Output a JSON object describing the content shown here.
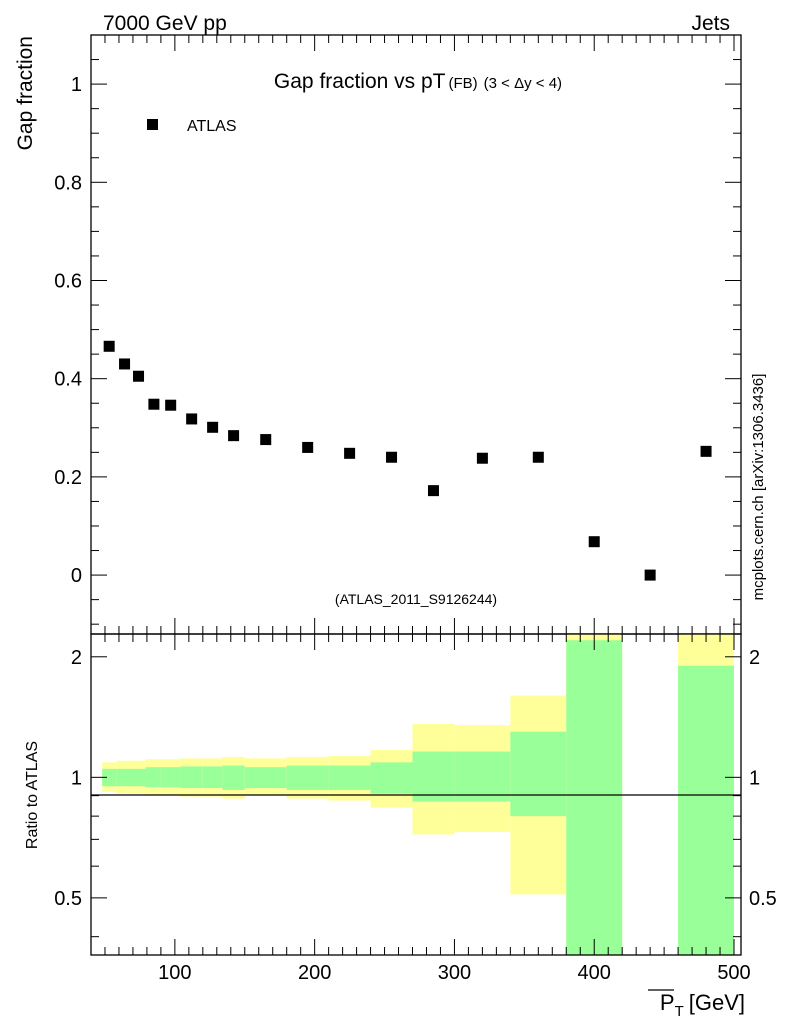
{
  "header": {
    "left": "7000 GeV pp",
    "right": "Jets"
  },
  "watermark": "mcplots.cern.ch [arXiv:1306.3436]",
  "colors": {
    "band_inner": "#99ff99",
    "band_outer": "#ffff99",
    "marker": "#000000",
    "reference_text": "#999999"
  },
  "chart_data": [
    {
      "type": "scatter",
      "title": "Gap fraction vs pT",
      "title_suffix": "(FB)",
      "title_range": "(3 < Δy < 4)",
      "ylabel": "Gap fraction",
      "xlim": [
        40,
        505
      ],
      "ylim": [
        -0.12,
        1.1
      ],
      "yticks": [
        0,
        0.2,
        0.4,
        0.6,
        0.8,
        1
      ],
      "ytick_labels": [
        "0",
        "0.2",
        "0.4",
        "0.6",
        "0.8",
        "1"
      ],
      "grid": false,
      "legend": {
        "position": "top-left",
        "entries": [
          "ATLAS"
        ]
      },
      "reference": "(ATLAS_2011_S9126244)",
      "series": [
        {
          "name": "ATLAS",
          "marker": "square",
          "x": [
            53,
            64,
            74,
            85,
            97,
            112,
            127,
            142,
            165,
            195,
            225,
            255,
            285,
            320,
            360,
            400,
            440,
            480
          ],
          "y": [
            0.466,
            0.43,
            0.405,
            0.348,
            0.346,
            0.318,
            0.301,
            0.284,
            0.276,
            0.26,
            0.248,
            0.24,
            0.172,
            0.238,
            0.24,
            0.068,
            0.0,
            0.252
          ]
        }
      ]
    },
    {
      "type": "area",
      "ylabel": "Ratio to ATLAS",
      "xlabel": "P_T [GeV]",
      "xlabel_main": "P",
      "xlabel_sub": "T",
      "xlabel_unit": "[GeV]",
      "xlim": [
        40,
        505
      ],
      "ylim": [
        0.36,
        2.28
      ],
      "yticks": [
        0.5,
        1,
        2
      ],
      "ytick_labels": [
        "0.5",
        "1",
        "2"
      ],
      "xticks": [
        100,
        200,
        300,
        400,
        500
      ],
      "xtick_labels": [
        "100",
        "200",
        "300",
        "400",
        "500"
      ],
      "reference_line": 1,
      "bins": [
        {
          "lo": 48,
          "hi": 58,
          "inner": [
            0.95,
            1.05
          ],
          "outer": [
            0.92,
            1.09
          ]
        },
        {
          "lo": 58,
          "hi": 69,
          "inner": [
            0.95,
            1.05
          ],
          "outer": [
            0.91,
            1.1
          ]
        },
        {
          "lo": 69,
          "hi": 79,
          "inner": [
            0.95,
            1.05
          ],
          "outer": [
            0.91,
            1.1
          ]
        },
        {
          "lo": 79,
          "hi": 90,
          "inner": [
            0.945,
            1.06
          ],
          "outer": [
            0.905,
            1.11
          ]
        },
        {
          "lo": 90,
          "hi": 104,
          "inner": [
            0.945,
            1.06
          ],
          "outer": [
            0.905,
            1.11
          ]
        },
        {
          "lo": 104,
          "hi": 120,
          "inner": [
            0.94,
            1.065
          ],
          "outer": [
            0.895,
            1.115
          ]
        },
        {
          "lo": 120,
          "hi": 134,
          "inner": [
            0.94,
            1.065
          ],
          "outer": [
            0.895,
            1.115
          ]
        },
        {
          "lo": 134,
          "hi": 150,
          "inner": [
            0.93,
            1.07
          ],
          "outer": [
            0.885,
            1.125
          ]
        },
        {
          "lo": 150,
          "hi": 180,
          "inner": [
            0.94,
            1.06
          ],
          "outer": [
            0.9,
            1.115
          ]
        },
        {
          "lo": 180,
          "hi": 210,
          "inner": [
            0.93,
            1.07
          ],
          "outer": [
            0.885,
            1.125
          ]
        },
        {
          "lo": 210,
          "hi": 240,
          "inner": [
            0.93,
            1.07
          ],
          "outer": [
            0.875,
            1.13
          ]
        },
        {
          "lo": 240,
          "hi": 270,
          "inner": [
            0.91,
            1.09
          ],
          "outer": [
            0.84,
            1.17
          ]
        },
        {
          "lo": 270,
          "hi": 300,
          "inner": [
            0.87,
            1.16
          ],
          "outer": [
            0.72,
            1.36
          ]
        },
        {
          "lo": 300,
          "hi": 340,
          "inner": [
            0.87,
            1.16
          ],
          "outer": [
            0.73,
            1.35
          ]
        },
        {
          "lo": 340,
          "hi": 380,
          "inner": [
            0.8,
            1.3
          ],
          "outer": [
            0.51,
            1.6
          ]
        },
        {
          "lo": 380,
          "hi": 420,
          "inner": [
            0.3,
            2.2
          ],
          "outer": [
            0.3,
            2.4
          ]
        },
        {
          "lo": 460,
          "hi": 500,
          "inner": [
            0.3,
            1.9
          ],
          "outer": [
            0.3,
            2.4
          ]
        }
      ]
    }
  ]
}
